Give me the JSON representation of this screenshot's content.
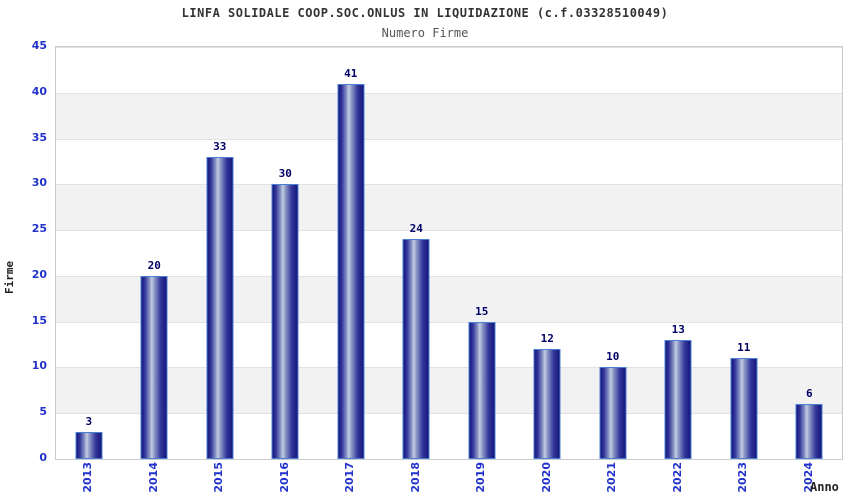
{
  "header": {
    "title": "LINFA SOLIDALE COOP.SOC.ONLUS IN LIQUIDAZIONE (c.f.03328510049)",
    "subtitle": "Numero Firme"
  },
  "chart_data": {
    "type": "bar",
    "title": "LINFA SOLIDALE COOP.SOC.ONLUS IN LIQUIDAZIONE (c.f.03328510049)",
    "subtitle": "Numero Firme",
    "xlabel": "Anno",
    "ylabel": "Firme",
    "categories": [
      "2013",
      "2014",
      "2015",
      "2016",
      "2017",
      "2018",
      "2019",
      "2020",
      "2021",
      "2022",
      "2023",
      "2024"
    ],
    "values": [
      3,
      20,
      33,
      30,
      41,
      24,
      15,
      12,
      10,
      13,
      11,
      6
    ],
    "ylim": [
      0,
      45
    ],
    "yticks": [
      0,
      5,
      10,
      15,
      20,
      25,
      30,
      35,
      40,
      45
    ],
    "grid": "horizontal alternating bands with gridlines every 5 units",
    "legend": "none",
    "bar_labels": true
  },
  "colors": {
    "title": "#333333",
    "subtitle": "#555555",
    "tick": "#2233CC",
    "value_label": "#000066",
    "axis_title": "#222222",
    "bar_edge": "#16167A",
    "bar_highlight": "#C4CCE0",
    "bar_border": "#4A7FD4",
    "band_gray": "#F2F2F2",
    "band_white": "#FFFFFF",
    "gridline": "#E2E2E2",
    "plot_border": "#CBCBCB"
  }
}
